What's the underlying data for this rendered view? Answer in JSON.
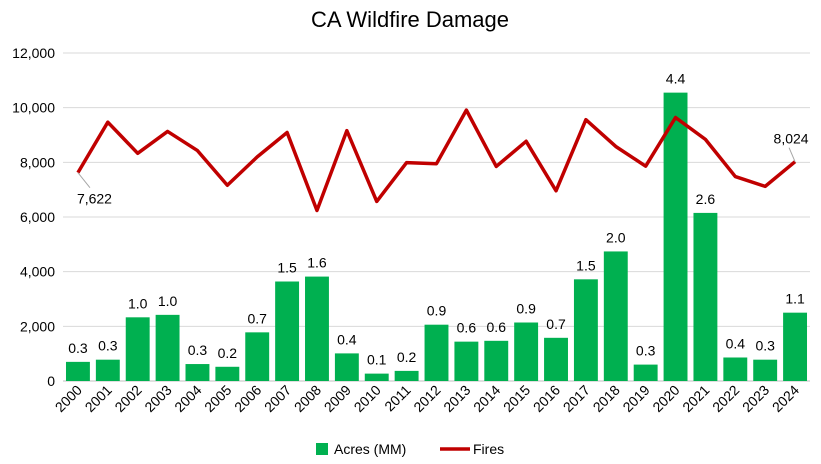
{
  "chart_data": {
    "type": "bar",
    "title": "CA Wildfire Damage",
    "categories": [
      "2000",
      "2001",
      "2002",
      "2003",
      "2004",
      "2005",
      "2006",
      "2007",
      "2008",
      "2009",
      "2010",
      "2011",
      "2012",
      "2013",
      "2014",
      "2015",
      "2016",
      "2017",
      "2018",
      "2019",
      "2020",
      "2021",
      "2022",
      "2023",
      "2024"
    ],
    "ylim": [
      0,
      12000
    ],
    "yticks": [
      "0",
      "2,000",
      "4,000",
      "6,000",
      "8,000",
      "10,000",
      "12,000"
    ],
    "grid": true,
    "legend_position": "bottom",
    "series": [
      {
        "name": "Acres (MM)",
        "kind": "bar",
        "color": "#00b050",
        "values": [
          700,
          780,
          2330,
          2420,
          620,
          520,
          1780,
          3640,
          3820,
          1010,
          270,
          370,
          2060,
          1440,
          1470,
          2140,
          1580,
          3720,
          4740,
          600,
          10550,
          6150,
          860,
          780,
          2500
        ],
        "labels": [
          "0.3",
          "0.3",
          "1.0",
          "1.0",
          "0.3",
          "0.2",
          "0.7",
          "1.5",
          "1.6",
          "0.4",
          "0.1",
          "0.2",
          "0.9",
          "0.6",
          "0.6",
          "0.9",
          "0.7",
          "1.5",
          "2.0",
          "0.3",
          "4.4",
          "2.6",
          "0.4",
          "0.3",
          "1.1"
        ]
      },
      {
        "name": "Fires",
        "kind": "line",
        "color": "#c00000",
        "values": [
          7622,
          9470,
          8330,
          9130,
          8430,
          7160,
          8200,
          9090,
          6240,
          9160,
          6570,
          7990,
          7950,
          9910,
          7850,
          8770,
          6960,
          9560,
          8580,
          7860,
          9640,
          8840,
          7480,
          7120,
          8024
        ],
        "point_labels": [
          {
            "index": 0,
            "text": "7,622"
          },
          {
            "index": 24,
            "text": "8,024"
          }
        ]
      }
    ]
  }
}
